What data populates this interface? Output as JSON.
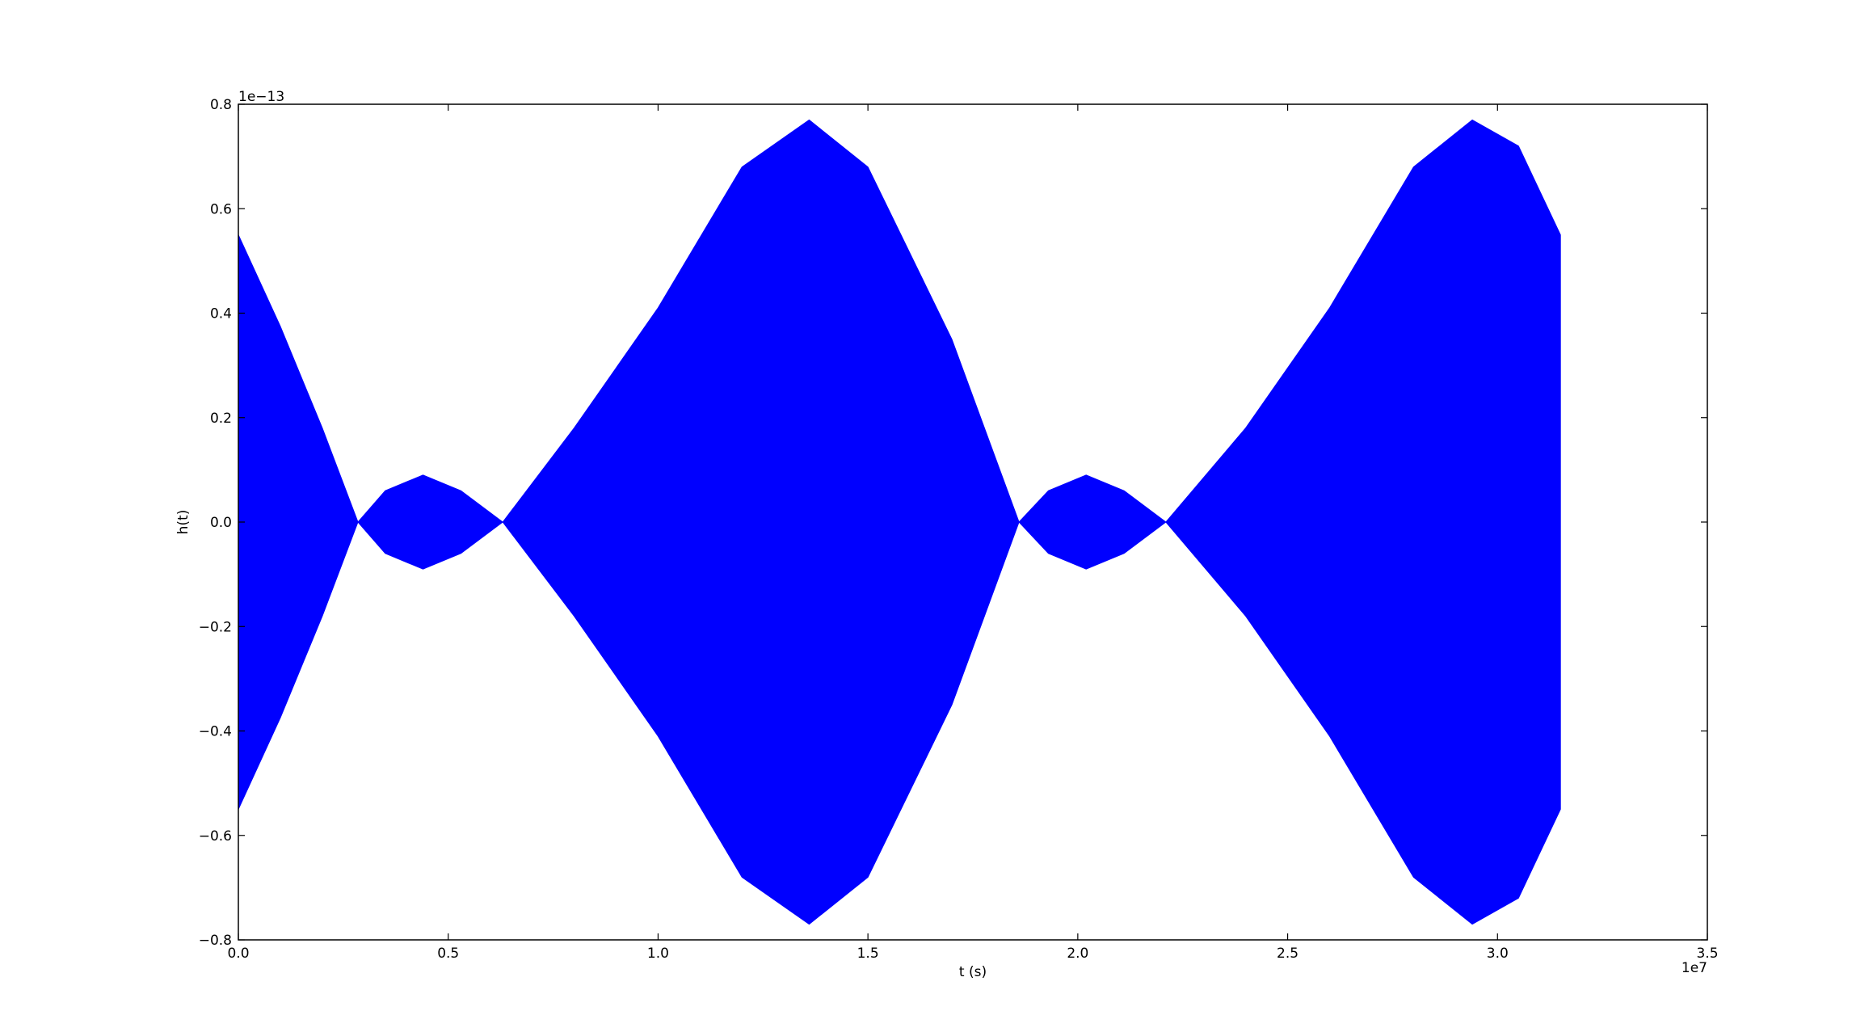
{
  "chart_data": {
    "type": "area",
    "title": "",
    "xlabel": "t (s)",
    "ylabel": "h(t)",
    "x_offset_text": "1e7",
    "y_offset_text": "1e−13",
    "xlim": [
      0.0,
      3.5
    ],
    "ylim": [
      -0.8,
      0.8
    ],
    "xticks": [
      0.0,
      0.5,
      1.0,
      1.5,
      2.0,
      2.5,
      3.0,
      3.5
    ],
    "xtick_labels": [
      "0.0",
      "0.5",
      "1.0",
      "1.5",
      "2.0",
      "2.5",
      "3.0",
      "3.5"
    ],
    "yticks": [
      0.8,
      0.6,
      0.4,
      0.2,
      0.0,
      -0.2,
      -0.4,
      -0.6,
      -0.8
    ],
    "ytick_labels": [
      "0.8",
      "0.6",
      "0.4",
      "0.2",
      "0.0",
      "−0.2",
      "−0.4",
      "−0.6",
      "−0.8"
    ],
    "grid": false,
    "legend": "none",
    "series": [
      {
        "color": "#0000ff",
        "envelope_x": [
          0.0,
          0.1,
          0.2,
          0.285,
          0.35,
          0.44,
          0.53,
          0.63,
          0.8,
          1.0,
          1.2,
          1.36,
          1.5,
          1.7,
          1.86,
          1.93,
          2.02,
          2.11,
          2.21,
          2.4,
          2.6,
          2.8,
          2.94,
          3.05,
          3.15
        ],
        "envelope_y": [
          0.55,
          0.375,
          0.18,
          0.0,
          0.06,
          0.09,
          0.06,
          0.0,
          0.18,
          0.41,
          0.68,
          0.77,
          0.68,
          0.35,
          0.0,
          0.06,
          0.09,
          0.06,
          0.0,
          0.18,
          0.41,
          0.68,
          0.77,
          0.72,
          0.55
        ]
      }
    ]
  }
}
